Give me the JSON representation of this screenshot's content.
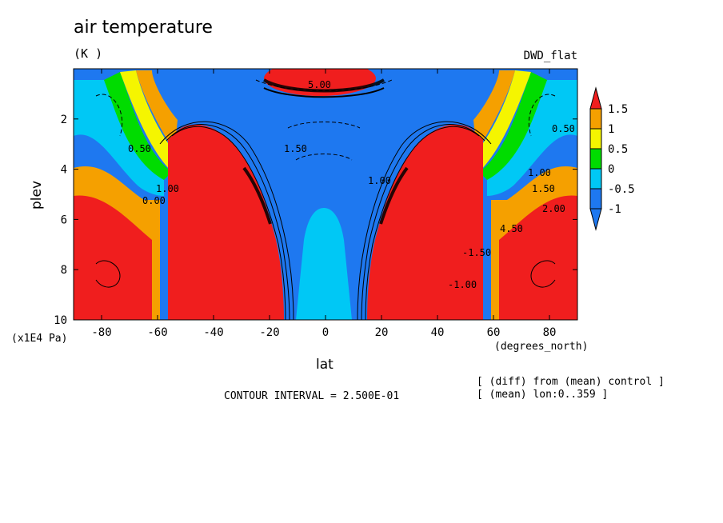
{
  "chart_data": {
    "type": "heatmap",
    "title": "air temperature",
    "units": "(K )",
    "experiment": "DWD_flat",
    "xlabel": "lat",
    "xunits": "(degrees_north)",
    "ylabel": "plev",
    "yunits": "(x1E4 Pa)",
    "xlim": [
      -90,
      90
    ],
    "ylim": [
      10,
      0
    ],
    "x_ticks": [
      -80,
      -60,
      -40,
      -20,
      0,
      20,
      40,
      60,
      80
    ],
    "y_ticks": [
      2,
      4,
      6,
      8,
      10
    ],
    "colorbar": {
      "levels": [
        -1,
        -0.5,
        0,
        0.5,
        1,
        1.5
      ],
      "labels": [
        "1.5",
        "1",
        "0.5",
        "0",
        "-0.5",
        "-1"
      ],
      "colors": [
        "#1e78f0",
        "#00c8f5",
        "#00dc00",
        "#f5f500",
        "#f5a000",
        "#f01e1e"
      ]
    },
    "contour_labels": [
      "5.00",
      "1.50",
      "0.00",
      "0.50",
      "1.00",
      "1.50",
      "2.00",
      "4.50",
      "-1.00",
      "-1.50",
      "0.50",
      "1.00",
      "1.00"
    ],
    "contour_interval": "CONTOUR INTERVAL = 2.500E-01",
    "notes": [
      "[ (diff) from (mean) control ]",
      "[ (mean) lon:0..359 ]"
    ]
  }
}
